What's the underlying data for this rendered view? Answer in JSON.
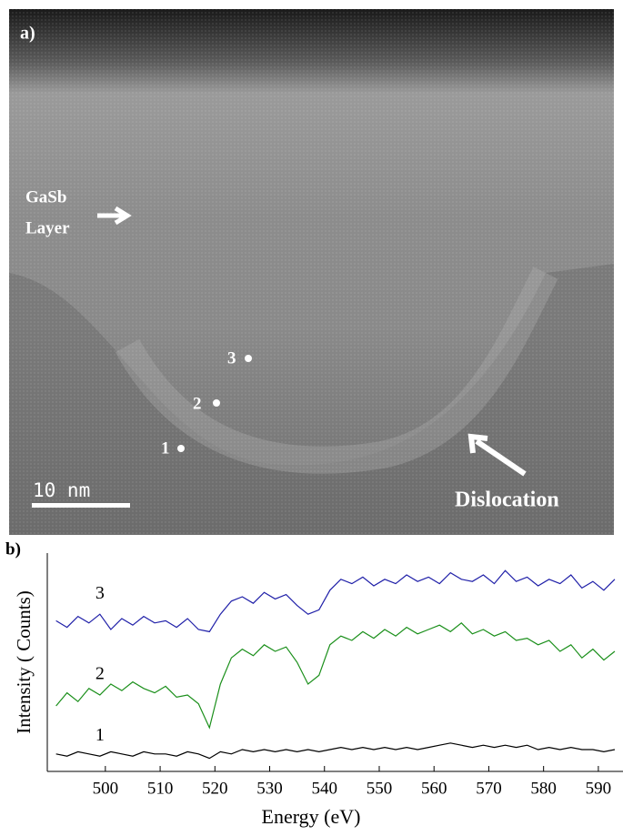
{
  "panel_a": {
    "label": "a)",
    "layer_label": [
      "GaSb",
      "Layer"
    ],
    "points": [
      "3",
      "2",
      "1"
    ],
    "scale_bar": "10 nm",
    "dislocation": "Dislocation"
  },
  "chart_data": {
    "type": "line",
    "panel_label": "b)",
    "xlabel": "Energy (eV)",
    "ylabel": "Intensity ( Counts)",
    "x": [
      491,
      493,
      495,
      497,
      499,
      501,
      503,
      505,
      507,
      509,
      511,
      513,
      515,
      517,
      519,
      521,
      523,
      525,
      527,
      529,
      531,
      533,
      535,
      537,
      539,
      541,
      543,
      545,
      547,
      549,
      551,
      553,
      555,
      557,
      559,
      561,
      563,
      565,
      567,
      569,
      571,
      573,
      575,
      577,
      579,
      581,
      583,
      585,
      587,
      589,
      591,
      593
    ],
    "series": [
      {
        "name": "3",
        "color": "#1f1fa8",
        "values": [
          69,
          66,
          71,
          68,
          72,
          65,
          70,
          67,
          71,
          68,
          69,
          66,
          70,
          65,
          64,
          72,
          78,
          80,
          77,
          82,
          79,
          81,
          76,
          72,
          74,
          83,
          88,
          86,
          89,
          85,
          88,
          86,
          90,
          87,
          89,
          86,
          91,
          88,
          87,
          90,
          86,
          92,
          87,
          89,
          85,
          88,
          86,
          90,
          84,
          87,
          83,
          88
        ]
      },
      {
        "name": "2",
        "color": "#1a8f1a",
        "values": [
          30,
          36,
          32,
          38,
          35,
          40,
          37,
          41,
          38,
          36,
          39,
          34,
          35,
          31,
          20,
          40,
          52,
          56,
          53,
          58,
          55,
          57,
          50,
          40,
          44,
          58,
          62,
          60,
          64,
          61,
          65,
          62,
          66,
          63,
          65,
          67,
          64,
          68,
          63,
          65,
          62,
          64,
          60,
          61,
          58,
          60,
          55,
          58,
          52,
          56,
          51,
          55
        ]
      },
      {
        "name": "1",
        "color": "#000000",
        "values": [
          8,
          7,
          9,
          8,
          7,
          9,
          8,
          7,
          9,
          8,
          8,
          7,
          9,
          8,
          6,
          9,
          8,
          10,
          9,
          10,
          9,
          10,
          9,
          10,
          9,
          10,
          11,
          10,
          11,
          10,
          11,
          10,
          11,
          10,
          11,
          12,
          13,
          12,
          11,
          12,
          11,
          12,
          11,
          12,
          10,
          11,
          10,
          11,
          10,
          10,
          9,
          10
        ]
      }
    ],
    "xlim": [
      489.4,
      594.5
    ],
    "ylim": [
      0,
      100
    ],
    "xticks": [
      500,
      510,
      520,
      530,
      540,
      550,
      560,
      570,
      580,
      590
    ]
  }
}
